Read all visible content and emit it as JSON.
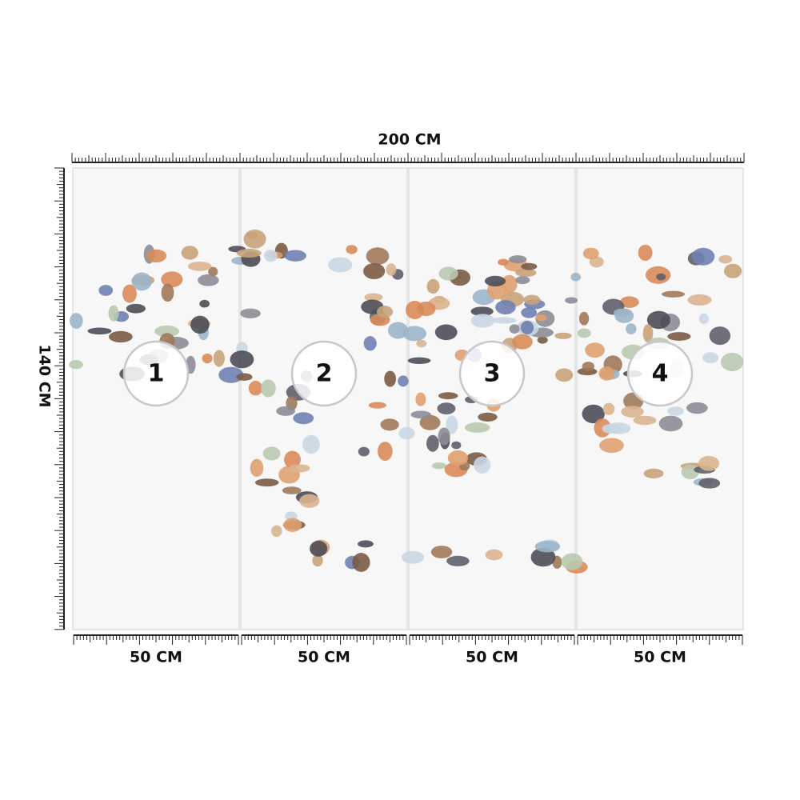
{
  "dimensions": {
    "width": "200 CM",
    "height": "140 CM"
  },
  "panels": [
    {
      "number": "1",
      "width": "50 CM"
    },
    {
      "number": "2",
      "width": "50 CM"
    },
    {
      "number": "3",
      "width": "50 CM"
    },
    {
      "number": "4",
      "width": "50 CM"
    }
  ]
}
